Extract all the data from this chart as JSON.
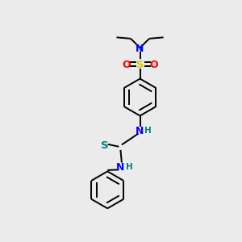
{
  "bg_color": "#ebebeb",
  "bond_color": "#000000",
  "N_color": "#0000ff",
  "O_color": "#ff0000",
  "S_sulfonyl_color": "#cccc00",
  "S_thio_color": "#008080",
  "H_color": "#008080",
  "font_size": 8.5,
  "line_width": 1.4,
  "figsize": [
    3.0,
    3.0
  ],
  "dpi": 100,
  "xlim": [
    0,
    10
  ],
  "ylim": [
    0,
    10
  ],
  "ring_r": 0.78,
  "dbl_off": 0.11
}
